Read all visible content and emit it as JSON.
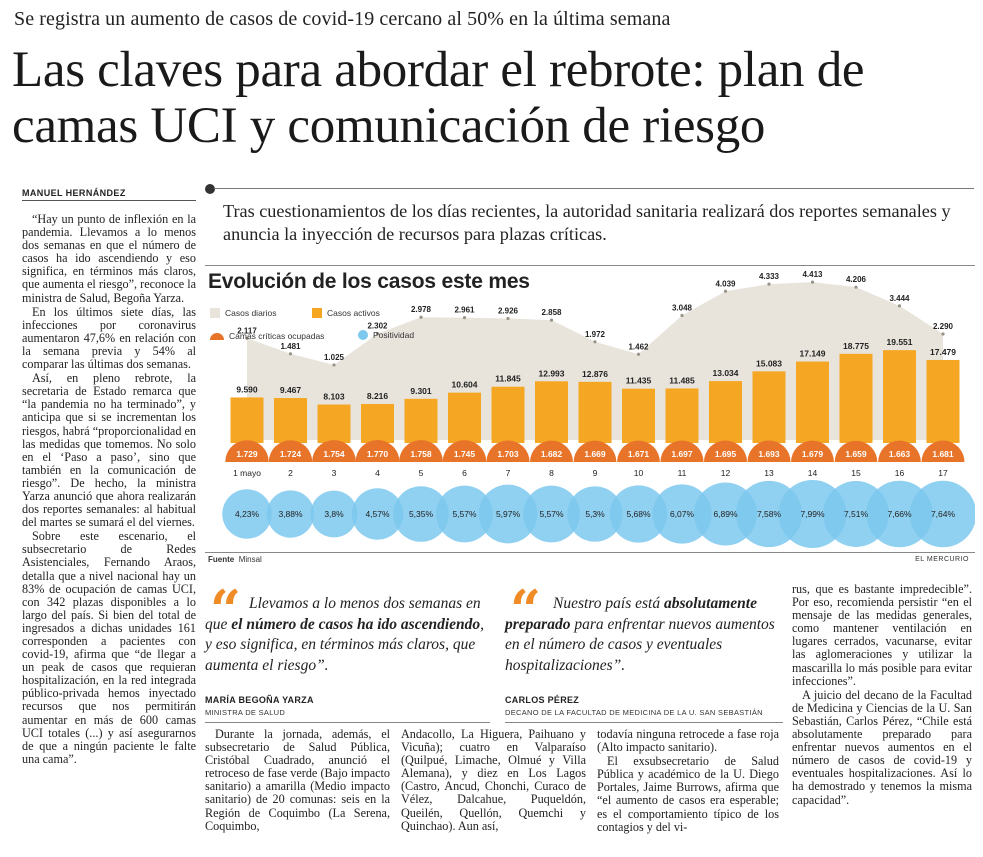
{
  "article": {
    "kicker": "Se registra un aumento de casos de covid-19 cercano al 50% en la última semana",
    "headline": "Las claves para abordar el rebrote: plan de camas UCI y comunicación de riesgo",
    "byline": "MANUEL HERNÁNDEZ",
    "lead": "Tras cuestionamientos de los días recientes, la autoridad sanitaria realizará dos reportes semanales y anuncia la inyección de recursos para plazas críticas.",
    "col1": [
      "“Hay un punto de inflexión en la pandemia. Llevamos a lo menos dos semanas en que el número de casos ha ido ascendiendo y eso significa, en términos más claros, que aumenta el riesgo”, reconoce la ministra de Salud, Begoña Yarza.",
      "En los últimos siete días, las infecciones por coronavirus aumentaron 47,6% en relación con la semana previa y 54% al comparar las últimas dos semanas.",
      "Así, en pleno rebrote, la secretaria de Estado remarca que “la pandemia no ha terminado”, y anticipa que si se incrementan los riesgos, habrá “proporcionalidad en las medidas que tomemos. No solo en el ‘Paso a paso’, sino que también en la comunicación de riesgo”. De hecho, la ministra Yarza anunció que ahora realizarán dos reportes semanales: al habitual del martes se sumará el del viernes.",
      "Sobre este escenario, el subsecretario de Redes Asistenciales, Fernando Araos, detalla que a nivel nacional hay un 83% de ocupación de camas UCI, con 342 plazas disponibles a lo largo del país. Si bien del total de ingresados a dichas unidades 161 corresponden a pacientes con covid-19, afirma que “de llegar a un peak de casos que requieran hospitalización, en la red integrada público-privada hemos inyectado recursos que nos permitirán aumentar en más de 600 camas UCI totales (...) y así asegurarnos de que a ningún paciente le falte una cama”."
    ],
    "col2": "Durante la jornada, además, el subsecretario de Salud Pública, Cristóbal Cuadrado, anunció el retroceso de fase verde (Bajo impacto sanitario) a amarilla (Medio impacto sanitario) de 20 comunas: seis en la Región de Coquimbo (La Serena, Coquimbo,",
    "col3": "Andacollo, La Higuera, Paihuano y Vicuña); cuatro en Valparaíso (Quilpué, Limache, Olmué y Villa Alemana), y diez en Los Lagos (Castro, Ancud, Chonchi, Curaco de Vélez, Dalcahue, Puqueldón, Queilén, Quellón, Quemchi y Quinchao). Aun así,",
    "col4": [
      "todavía ninguna retrocede a fase roja (Alto impacto sanitario).",
      "El exsubsecretario de Salud Pública y académico de la U. Diego Portales, Jaime Burrows, afirma que “el aumento de casos era esperable; es el comportamiento típico de los contagios y del vi-"
    ],
    "col5": [
      "rus, que es bastante impredecible”. Por eso, recomienda persistir “en el mensaje de las medidas generales, como mantener ventilación en lugares cerrados, vacunarse, evitar las aglomeraciones y utilizar la mascarilla lo más posible para evitar infecciones”.",
      "A juicio del decano de la Facultad de Medicina y Ciencias de la U. San Sebastián, Carlos Pérez, “Chile está absolutamente preparado para enfrentar nuevos aumentos en el número de casos de covid-19 y eventuales hospitalizaciones. Así lo ha demostrado y tenemos la misma capacidad”."
    ]
  },
  "quotes": [
    {
      "pre": "Llevamos a lo menos dos semanas en que ",
      "bold": "el número de casos ha ido ascendiendo",
      "post": ", y eso significa, en términos más claros, que aumenta el riesgo”.",
      "name": "MARÍA BEGOÑA YARZA",
      "role": "MINISTRA DE SALUD"
    },
    {
      "pre": "Nuestro país está ",
      "bold": "absolutamente preparado",
      "post": " para enfrentar nuevos aumentos en el número de casos y eventuales hospitalizaciones”.",
      "name": "CARLOS PÉREZ",
      "role": "DECANO DE LA FACULTAD DE MEDICINA DE LA U. SAN SEBASTIÁN"
    }
  ],
  "chart_meta": {
    "title": "Evolución de los casos este mes",
    "source_label": "Fuente",
    "source": "Minsal",
    "publisher": "EL MERCURIO"
  },
  "chart_data": {
    "type": "bar",
    "title": "Evolución de los casos este mes",
    "categories": [
      "1 mayo",
      "2",
      "3",
      "4",
      "5",
      "6",
      "7",
      "8",
      "9",
      "10",
      "11",
      "12",
      "13",
      "14",
      "15",
      "16",
      "17"
    ],
    "series": [
      {
        "name": "Casos diarios",
        "type": "area",
        "color": "#e8e4dc",
        "values": [
          2117,
          1481,
          1025,
          2302,
          2978,
          2961,
          2926,
          2858,
          1972,
          1462,
          3048,
          4039,
          4333,
          4413,
          4206,
          3444,
          2290
        ],
        "labels": [
          "2.117",
          "1.481",
          "1.025",
          "2.302",
          "2.978",
          "2.961",
          "2.926",
          "2.858",
          "1.972",
          "1.462",
          "3.048",
          "4.039",
          "4.333",
          "4.413",
          "4.206",
          "3.444",
          "2.290"
        ]
      },
      {
        "name": "Casos activos",
        "type": "bar",
        "color": "#f5a623",
        "values": [
          9590,
          9467,
          8103,
          8216,
          9301,
          10604,
          11845,
          12993,
          12876,
          11435,
          11485,
          13034,
          15083,
          17149,
          18775,
          19551,
          17479
        ],
        "labels": [
          "9.590",
          "9.467",
          "8.103",
          "8.216",
          "9.301",
          "10.604",
          "11.845",
          "12.993",
          "12.876",
          "11.435",
          "11.485",
          "13.034",
          "15.083",
          "17.149",
          "18.775",
          "19.551",
          "17.479"
        ]
      },
      {
        "name": "Camas críticas ocupadas",
        "type": "half-circle",
        "color": "#e8742a",
        "values": [
          1729,
          1724,
          1754,
          1770,
          1758,
          1745,
          1703,
          1682,
          1669,
          1671,
          1697,
          1695,
          1693,
          1679,
          1659,
          1663,
          1681
        ],
        "labels": [
          "1.729",
          "1.724",
          "1.754",
          "1.770",
          "1.758",
          "1.745",
          "1.703",
          "1.682",
          "1.669",
          "1.671",
          "1.697",
          "1.695",
          "1.693",
          "1.679",
          "1.659",
          "1.663",
          "1.681"
        ]
      },
      {
        "name": "Positividad",
        "type": "circle",
        "color": "#7cc8ee",
        "values": [
          4.23,
          3.88,
          3.8,
          4.57,
          5.35,
          5.57,
          5.97,
          5.57,
          5.3,
          5.68,
          6.07,
          6.89,
          7.58,
          7.99,
          7.51,
          7.66,
          7.64
        ],
        "labels": [
          "4,23%",
          "3,88%",
          "3,8%",
          "4,57%",
          "5,35%",
          "5,57%",
          "5,97%",
          "5,57%",
          "5,3%",
          "5,68%",
          "6,07%",
          "6,89%",
          "7,58%",
          "7,99%",
          "7,51%",
          "7,66%",
          "7,64%"
        ]
      }
    ],
    "legend": "top-left",
    "grid": false
  }
}
